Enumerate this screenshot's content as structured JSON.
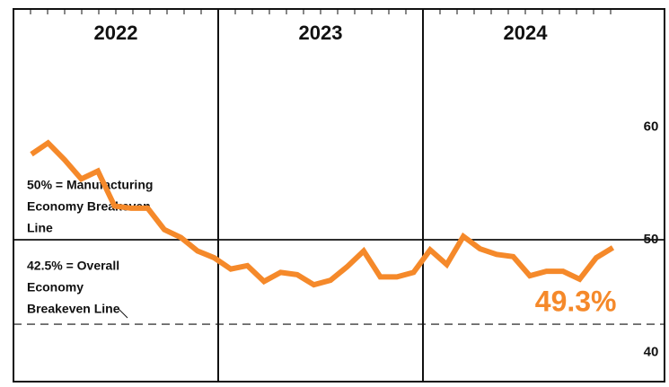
{
  "chart_data": {
    "type": "line",
    "x_groups": [
      "2022",
      "2023",
      "2024"
    ],
    "categories": [
      null,
      null,
      null,
      null,
      null,
      null,
      null,
      null,
      null,
      null,
      null,
      null,
      null,
      null,
      null,
      null,
      null,
      null,
      null,
      null,
      null,
      null,
      null,
      null,
      null,
      null,
      null,
      null,
      null,
      null,
      null,
      null,
      null,
      null,
      null,
      null
    ],
    "values": [
      57.6,
      58.6,
      57.1,
      55.4,
      56.1,
      53.0,
      52.8,
      52.8,
      50.9,
      50.2,
      49.0,
      48.4,
      47.4,
      47.7,
      46.3,
      47.1,
      46.9,
      46.0,
      46.4,
      47.6,
      49.0,
      46.7,
      46.7,
      47.1,
      49.1,
      47.8,
      50.3,
      49.2,
      48.7,
      48.5,
      46.8,
      47.2,
      47.2,
      46.5,
      48.4,
      49.3
    ],
    "value_labels": [
      null,
      null,
      null,
      null,
      null,
      null,
      null,
      null,
      null,
      null,
      null,
      null,
      null,
      null,
      null,
      null,
      null,
      null,
      null,
      null,
      null,
      null,
      null,
      null,
      null,
      null,
      null,
      null,
      null,
      null,
      null,
      null,
      null,
      null,
      null,
      "49.3%"
    ],
    "color": "#f5892a",
    "ylim": [
      37.4,
      70.5
    ],
    "yticks": [
      40,
      50,
      60
    ],
    "reference_lines": [
      {
        "value": 50,
        "style": "solid",
        "label": [
          "50% = Manufacturing",
          "Economy Breakeven",
          "Line"
        ]
      },
      {
        "value": 42.5,
        "style": "dashed",
        "label": [
          "42.5% = Overall",
          "Economy",
          "Breakeven Line"
        ]
      }
    ]
  }
}
